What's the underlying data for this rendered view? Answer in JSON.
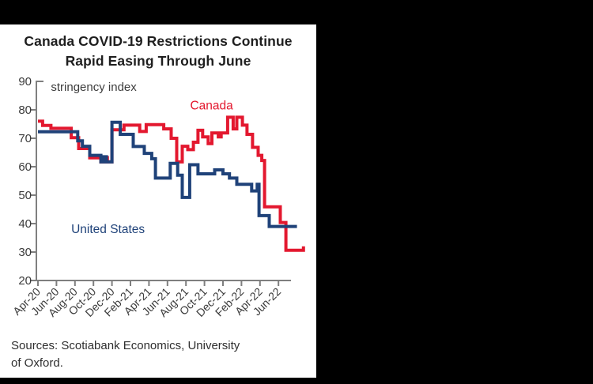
{
  "title": {
    "line1": "Canada COVID-19 Restrictions Continue",
    "line2": "Rapid Easing Through June"
  },
  "sources": {
    "line1": "Sources: Scotiabank Economics, University",
    "line2": "of Oxford."
  },
  "chart_data": {
    "type": "line",
    "title": "Canada COVID-19 Restrictions Continue Rapid Easing Through June",
    "inline_axis_label": "stringency index",
    "xlabel": "",
    "ylabel": "stringency index",
    "ylim": [
      20,
      90
    ],
    "y_ticks": [
      20,
      30,
      40,
      50,
      60,
      70,
      80,
      90
    ],
    "x_unit": "months since Apr-2020",
    "xlim": [
      0,
      29.5
    ],
    "x_tick_months": [
      0,
      2,
      4,
      6,
      8,
      10,
      12,
      14,
      16,
      18,
      20,
      22,
      24,
      26
    ],
    "x_tick_labels": [
      "Apr-20",
      "Jun-20",
      "Aug-20",
      "Oct-20",
      "Dec-20",
      "Feb-21",
      "Apr-21",
      "Jun-21",
      "Aug-21",
      "Oct-21",
      "Dec-21",
      "Feb-22",
      "Apr-22",
      "Jun-22"
    ],
    "grid": false,
    "legend_position": "inline-annotations",
    "axis_color": "#7f7f7f",
    "tick_label_color": "#3b3b3b",
    "series": [
      {
        "name": "Canada",
        "color": "#e3182f",
        "points": [
          [
            0,
            76
          ],
          [
            0.5,
            76
          ],
          [
            0.5,
            74.5
          ],
          [
            1.4,
            74.5
          ],
          [
            1.4,
            73.5
          ],
          [
            3.6,
            73.5
          ],
          [
            3.6,
            70.2
          ],
          [
            4.4,
            70.2
          ],
          [
            4.4,
            66.4
          ],
          [
            5.6,
            66.4
          ],
          [
            5.6,
            63.1
          ],
          [
            6.8,
            63.1
          ],
          [
            6.8,
            61.7
          ],
          [
            7.2,
            61.7
          ],
          [
            7.2,
            63.2
          ],
          [
            7.5,
            63.2
          ],
          [
            7.5,
            61.7
          ],
          [
            8.0,
            61.7
          ],
          [
            8.0,
            73.0
          ],
          [
            9.3,
            73.0
          ],
          [
            9.3,
            74.6
          ],
          [
            11.0,
            74.6
          ],
          [
            11.0,
            72.4
          ],
          [
            11.7,
            72.4
          ],
          [
            11.7,
            74.8
          ],
          [
            13.6,
            74.8
          ],
          [
            13.6,
            73.3
          ],
          [
            14.4,
            73.3
          ],
          [
            14.4,
            70.0
          ],
          [
            15.0,
            70.0
          ],
          [
            15.0,
            61.7
          ],
          [
            15.6,
            61.7
          ],
          [
            15.6,
            67.2
          ],
          [
            16.2,
            67.2
          ],
          [
            16.2,
            66.0
          ],
          [
            16.8,
            66.0
          ],
          [
            16.8,
            68.6
          ],
          [
            17.3,
            68.6
          ],
          [
            17.3,
            72.8
          ],
          [
            17.8,
            72.8
          ],
          [
            17.8,
            70.5
          ],
          [
            18.4,
            70.5
          ],
          [
            18.4,
            68.1
          ],
          [
            18.8,
            68.1
          ],
          [
            18.8,
            71.9
          ],
          [
            19.5,
            71.9
          ],
          [
            19.5,
            70.5
          ],
          [
            19.8,
            70.5
          ],
          [
            19.8,
            71.9
          ],
          [
            20.5,
            71.9
          ],
          [
            20.5,
            77.4
          ],
          [
            21.1,
            77.4
          ],
          [
            21.1,
            73.3
          ],
          [
            21.5,
            73.3
          ],
          [
            21.5,
            77.4
          ],
          [
            22.1,
            77.4
          ],
          [
            22.1,
            74.6
          ],
          [
            22.6,
            74.6
          ],
          [
            22.6,
            71.4
          ],
          [
            23.2,
            71.4
          ],
          [
            23.2,
            66.8
          ],
          [
            23.8,
            66.8
          ],
          [
            23.8,
            64.0
          ],
          [
            24.2,
            64.0
          ],
          [
            24.2,
            62.2
          ],
          [
            24.5,
            62.2
          ],
          [
            24.5,
            45.9
          ],
          [
            26.2,
            45.9
          ],
          [
            26.2,
            40.4
          ],
          [
            26.8,
            40.4
          ],
          [
            26.8,
            30.6
          ],
          [
            28.7,
            30.6
          ],
          [
            28.7,
            32.0
          ]
        ]
      },
      {
        "name": "United States",
        "color": "#1f4279",
        "points": [
          [
            0,
            72.3
          ],
          [
            4.3,
            72.3
          ],
          [
            4.3,
            69.1
          ],
          [
            4.8,
            69.1
          ],
          [
            4.8,
            67.2
          ],
          [
            5.6,
            67.2
          ],
          [
            5.6,
            64.0
          ],
          [
            6.8,
            64.0
          ],
          [
            6.8,
            61.7
          ],
          [
            7.1,
            61.7
          ],
          [
            7.1,
            63.5
          ],
          [
            7.4,
            63.5
          ],
          [
            7.4,
            61.7
          ],
          [
            8.0,
            61.7
          ],
          [
            8.0,
            75.6
          ],
          [
            8.9,
            75.6
          ],
          [
            8.9,
            71.4
          ],
          [
            10.3,
            71.4
          ],
          [
            10.3,
            67.1
          ],
          [
            11.5,
            67.1
          ],
          [
            11.5,
            64.7
          ],
          [
            12.3,
            64.7
          ],
          [
            12.3,
            62.8
          ],
          [
            12.7,
            62.8
          ],
          [
            12.7,
            56.0
          ],
          [
            14.3,
            56.0
          ],
          [
            14.3,
            61.2
          ],
          [
            15.1,
            61.2
          ],
          [
            15.1,
            57.0
          ],
          [
            15.6,
            57.0
          ],
          [
            15.6,
            49.2
          ],
          [
            16.4,
            49.2
          ],
          [
            16.4,
            60.7
          ],
          [
            17.3,
            60.7
          ],
          [
            17.3,
            57.5
          ],
          [
            19.1,
            57.5
          ],
          [
            19.1,
            58.9
          ],
          [
            20.0,
            58.9
          ],
          [
            20.0,
            57.5
          ],
          [
            20.7,
            57.5
          ],
          [
            20.7,
            56.0
          ],
          [
            21.5,
            56.0
          ],
          [
            21.5,
            53.8
          ],
          [
            23.1,
            53.8
          ],
          [
            23.1,
            51.5
          ],
          [
            23.7,
            51.5
          ],
          [
            23.7,
            53.8
          ],
          [
            23.9,
            53.8
          ],
          [
            23.9,
            42.8
          ],
          [
            25.0,
            42.8
          ],
          [
            25.0,
            39.0
          ],
          [
            28.0,
            39.0
          ]
        ]
      }
    ],
    "annotations": [
      {
        "text": "stringency index",
        "color": "#3d3d3d",
        "m": 1.4,
        "v": 86.6,
        "size": 15
      },
      {
        "text": "Canada",
        "color": "#e3182f",
        "m": 16.45,
        "v": 80.2,
        "size": 15.5
      },
      {
        "text": "United States",
        "color": "#1f4279",
        "m": 3.6,
        "v": 36.6,
        "size": 15.5
      }
    ]
  }
}
